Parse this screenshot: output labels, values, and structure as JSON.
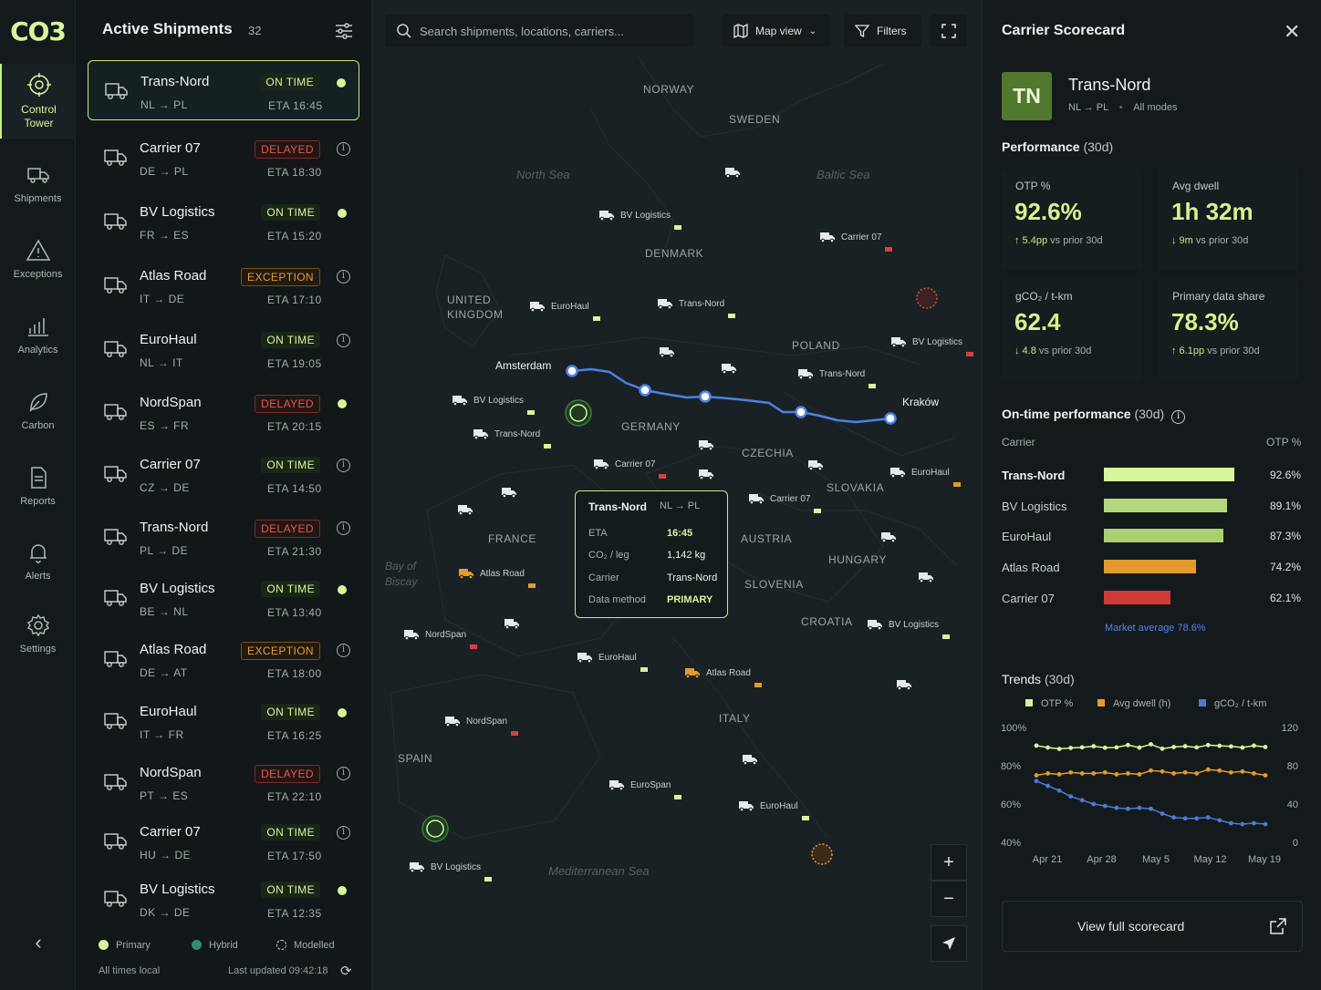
{
  "app": {
    "logo": "CO3"
  },
  "nav": {
    "items": [
      {
        "label": "Control Tower",
        "icon": "target-icon",
        "active": true
      },
      {
        "label": "Shipments",
        "icon": "truck-icon"
      },
      {
        "label": "Exceptions",
        "icon": "warning-icon"
      },
      {
        "label": "Analytics",
        "icon": "bars-icon"
      },
      {
        "label": "Carbon",
        "icon": "leaf-icon"
      },
      {
        "label": "Reports",
        "icon": "document-icon"
      },
      {
        "label": "Alerts",
        "icon": "bell-icon"
      },
      {
        "label": "Settings",
        "icon": "gear-icon"
      }
    ],
    "collapse_glyph": "‹"
  },
  "shipments": {
    "title": "Active Shipments",
    "count": "32",
    "rows": [
      {
        "name": "Trans-Nord",
        "route": "NL → PL",
        "status": "ON TIME",
        "kind": "ontime",
        "eta": "ETA 16:45",
        "marker": "dot"
      },
      {
        "name": "Carrier 07",
        "route": "DE → PL",
        "status": "DELAYED",
        "kind": "delayed",
        "eta": "ETA 18:30",
        "marker": "info"
      },
      {
        "name": "BV Logistics",
        "route": "FR → ES",
        "status": "ON TIME",
        "kind": "ontime",
        "eta": "ETA 15:20",
        "marker": "dot"
      },
      {
        "name": "Atlas Road",
        "route": "IT → DE",
        "status": "EXCEPTION",
        "kind": "exception",
        "eta": "ETA 17:10",
        "marker": "info"
      },
      {
        "name": "EuroHaul",
        "route": "NL → IT",
        "status": "ON TIME",
        "kind": "ontime",
        "eta": "ETA 19:05",
        "marker": "info"
      },
      {
        "name": "NordSpan",
        "route": "ES → FR",
        "status": "DELAYED",
        "kind": "delayed",
        "eta": "ETA 20:15",
        "marker": "dot"
      },
      {
        "name": "Carrier 07",
        "route": "CZ → DE",
        "status": "ON TIME",
        "kind": "ontime",
        "eta": "ETA 14:50",
        "marker": "info"
      },
      {
        "name": "Trans-Nord",
        "route": "PL → DE",
        "status": "DELAYED",
        "kind": "delayed",
        "eta": "ETA 21:30",
        "marker": "info"
      },
      {
        "name": "BV Logistics",
        "route": "BE → NL",
        "status": "ON TIME",
        "kind": "ontime",
        "eta": "ETA 13:40",
        "marker": "dot"
      },
      {
        "name": "Atlas Road",
        "route": "DE → AT",
        "status": "EXCEPTION",
        "kind": "exception",
        "eta": "ETA 18:00",
        "marker": "info"
      },
      {
        "name": "EuroHaul",
        "route": "IT → FR",
        "status": "ON TIME",
        "kind": "ontime",
        "eta": "ETA 16:25",
        "marker": "dot"
      },
      {
        "name": "NordSpan",
        "route": "PT → ES",
        "status": "DELAYED",
        "kind": "delayed",
        "eta": "ETA 22:10",
        "marker": "info"
      },
      {
        "name": "Carrier 07",
        "route": "HU → DE",
        "status": "ON TIME",
        "kind": "ontime",
        "eta": "ETA 17:50",
        "marker": "info"
      },
      {
        "name": "BV Logistics",
        "route": "DK → DE",
        "status": "ON TIME",
        "kind": "ontime",
        "eta": "ETA 12:35",
        "marker": "dot"
      }
    ],
    "legend": {
      "primary": "Primary",
      "hybrid": "Hybrid",
      "modelled": "Modelled"
    },
    "footer_left": "All times local",
    "footer_right": "Last updated 09:42:18"
  },
  "map": {
    "search_placeholder": "Search shipments, locations, carriers...",
    "view_button": "Map view",
    "filters_button": "Filters",
    "regions": [
      "NORWAY",
      "SWEDEN",
      "DENMARK",
      "UNITED KINGDOM",
      "POLAND",
      "GERMANY",
      "CZECHIA",
      "SLOVAKIA",
      "FRANCE",
      "AUSTRIA",
      "HUNGARY",
      "SLOVENIA",
      "CROATIA",
      "ITALY",
      "SPAIN"
    ],
    "seas": [
      "North Sea",
      "Baltic Sea",
      "Bay of Biscay",
      "Mediterranean Sea"
    ],
    "cities": [
      "Amsterdam",
      "Kraków"
    ],
    "carrier_markers": [
      "BV Logistics",
      "Carrier 07",
      "EuroHaul",
      "Trans-Nord",
      "BV Logistics",
      "Trans-Nord",
      "BV Logistics",
      "Trans-Nord",
      "Carrier 07",
      "EuroHaul",
      "Carrier 07",
      "Atlas Road",
      "BV Logistics",
      "NordSpan",
      "EuroHaul",
      "Atlas Road",
      "NordSpan",
      "EuroSpan",
      "EuroHaul",
      "BV Logistics"
    ],
    "tooltip": {
      "title": "Trans-Nord",
      "route": "NL → PL",
      "rows": [
        {
          "label": "ETA",
          "value": "16:45"
        },
        {
          "label": "CO₂ / leg",
          "value": "1,142 kg"
        },
        {
          "label": "Carrier",
          "value": "Trans-Nord"
        },
        {
          "label": "Data method",
          "value": "PRIMARY"
        }
      ]
    },
    "zoom_in": "+",
    "zoom_out": "−"
  },
  "scorecard": {
    "title": "Carrier Scorecard",
    "avatar": "TN",
    "name": "Trans-Nord",
    "route": "NL → PL",
    "modes": "All modes",
    "performance_title": "Performance",
    "performance_period": "(30d)",
    "kpis": [
      {
        "label": "OTP %",
        "value": "92.6%",
        "delta_strong": "↑ 5.4pp",
        "delta_rest": "vs prior 30d"
      },
      {
        "label": "Avg dwell",
        "value": "1h 32m",
        "delta_strong": "↓ 9m",
        "delta_rest": "vs prior 30d"
      },
      {
        "label": "gCO₂ / t-km",
        "value": "62.4",
        "delta_strong": "↓ 4.8",
        "delta_rest": "vs prior 30d"
      },
      {
        "label": "Primary data share",
        "value": "78.3%",
        "delta_strong": "↑ 6.1pp",
        "delta_rest": "vs prior 30d"
      }
    ],
    "otp_title": "On-time performance",
    "otp_period": "(30d)",
    "otp_col_carrier": "Carrier",
    "otp_col_value": "OTP %",
    "market_average": "Market average  78.6%",
    "trends_title": "Trends",
    "trends_period": "(30d)",
    "cta": "View full scorecard"
  },
  "chart_data": [
    {
      "type": "bar",
      "title": "On-time performance (30d)",
      "categories": [
        "Trans-Nord",
        "BV Logistics",
        "EuroHaul",
        "Atlas Road",
        "Carrier 07"
      ],
      "values": [
        92.6,
        89.1,
        87.3,
        74.2,
        62.1
      ],
      "value_labels": [
        "92.6%",
        "89.1%",
        "87.3%",
        "74.2%",
        "62.1%"
      ],
      "colors": [
        "#d8f59a",
        "#b5d77e",
        "#a9d071",
        "#e39a2e",
        "#d23a37"
      ],
      "xlim": [
        0,
        100
      ],
      "reference": 78.6
    },
    {
      "type": "line",
      "title": "Trends (30d)",
      "x_ticks": [
        "Apr 21",
        "Apr 28",
        "May 5",
        "May 12",
        "May 19"
      ],
      "y_left_ticks": [
        "100%",
        "80%",
        "60%",
        "40%"
      ],
      "y_right_ticks": [
        "120",
        "80",
        "40",
        "0"
      ],
      "ylim_left": [
        40,
        100
      ],
      "ylim_right": [
        0,
        120
      ],
      "series": [
        {
          "name": "OTP %",
          "color": "#d8f59a",
          "axis": "left",
          "values": [
            90.5,
            89.5,
            88.8,
            89.3,
            89.6,
            90.2,
            89.4,
            89.6,
            90.8,
            89.5,
            91.2,
            88.9,
            89.8,
            90.2,
            89.6,
            90.8,
            90.4,
            90.1,
            89.5,
            90.5,
            89.8
          ]
        },
        {
          "name": "Avg dwell (h)",
          "color": "#e39a2e",
          "axis": "right",
          "values": [
            70,
            72,
            71,
            73,
            72,
            72,
            73,
            71,
            72,
            71,
            75,
            74,
            72,
            73,
            72,
            76,
            75,
            73,
            74,
            72,
            70
          ]
        },
        {
          "name": "gCO₂ / t-km",
          "color": "#4b7ad9",
          "axis": "right",
          "values": [
            64,
            59,
            54,
            48,
            44,
            40,
            38,
            36,
            35,
            36,
            35,
            30,
            26,
            25,
            25,
            26,
            23,
            20,
            19,
            20,
            19
          ]
        }
      ]
    }
  ],
  "colors": {
    "accent": "#d8f59a",
    "delayed": "#e5584f",
    "exception": "#e89a33",
    "route": "#4c82e6",
    "hybrid": "#2f8f74"
  }
}
